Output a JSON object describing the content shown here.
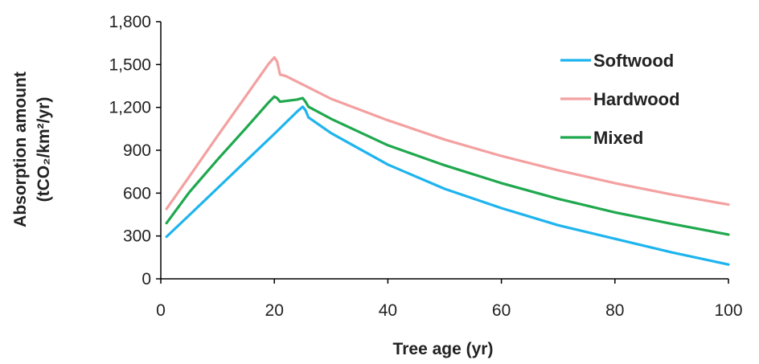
{
  "chart_data": {
    "type": "line",
    "xlabel": "Tree age (yr)",
    "ylabel_line1": "Absorption amount",
    "ylabel_line2": "(tCO₂/km²/yr)",
    "xlim": [
      0,
      100
    ],
    "ylim": [
      0,
      1800
    ],
    "xticks": [
      0,
      20,
      40,
      60,
      80,
      100
    ],
    "yticks": [
      0,
      300,
      600,
      900,
      1200,
      1500,
      1800
    ],
    "xtick_labels": [
      "0",
      "20",
      "40",
      "60",
      "80",
      "100"
    ],
    "ytick_labels": [
      "0",
      "300",
      "600",
      "900",
      "1,200",
      "1,500",
      "1,800"
    ],
    "grid": false,
    "legend_position": "top-right",
    "series": [
      {
        "name": "Softwood",
        "color": "#1eb4ee",
        "x": [
          1,
          5,
          10,
          15,
          20,
          24,
          25,
          25.5,
          26,
          30,
          40,
          50,
          60,
          70,
          80,
          90,
          100
        ],
        "y": [
          295,
          445,
          635,
          825,
          1015,
          1170,
          1205,
          1180,
          1130,
          1020,
          800,
          630,
          495,
          375,
          280,
          185,
          100
        ]
      },
      {
        "name": "Hardwood",
        "color": "#f4a0a0",
        "x": [
          1,
          5,
          10,
          15,
          19,
          20,
          20.5,
          21,
          22,
          25,
          30,
          40,
          50,
          60,
          70,
          80,
          90,
          100
        ],
        "y": [
          490,
          715,
          1000,
          1280,
          1505,
          1550,
          1520,
          1430,
          1420,
          1360,
          1260,
          1110,
          975,
          860,
          760,
          670,
          590,
          520
        ]
      },
      {
        "name": "Mixed",
        "color": "#1fa84e",
        "x": [
          1,
          5,
          10,
          15,
          19,
          20,
          20.5,
          21,
          22,
          24,
          25,
          25.5,
          26,
          30,
          40,
          50,
          60,
          70,
          80,
          90,
          100
        ],
        "y": [
          390,
          605,
          835,
          1055,
          1235,
          1275,
          1265,
          1240,
          1245,
          1255,
          1265,
          1240,
          1205,
          1120,
          935,
          795,
          670,
          560,
          465,
          385,
          310
        ]
      }
    ]
  }
}
